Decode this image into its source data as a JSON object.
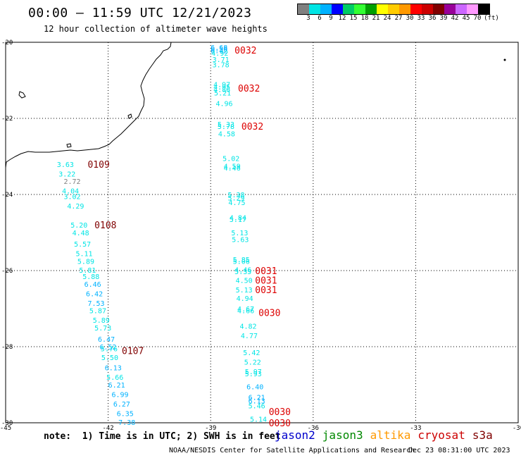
{
  "header": {
    "title": "00:00 — 11:59 UTC 12/21/2023",
    "subtitle": "12 hour collection of altimeter wave heights"
  },
  "colorbar": {
    "colors": [
      "#808080",
      "#00e5e5",
      "#00b2ff",
      "#0000ff",
      "#00cc66",
      "#33ff33",
      "#00a000",
      "#ffff00",
      "#ffcc00",
      "#ff9900",
      "#ff0000",
      "#cc0000",
      "#800000",
      "#990099",
      "#cc66ff",
      "#ff99ff",
      "#000000"
    ],
    "labels": [
      "3",
      "6",
      "9",
      "12",
      "15",
      "18",
      "21",
      "24",
      "27",
      "30",
      "33",
      "36",
      "39",
      "42",
      "45",
      "70",
      "(ft)"
    ]
  },
  "axes": {
    "y_ticks": [
      "-20",
      "-22",
      "-24",
      "-26",
      "-28",
      "-30"
    ],
    "x_ticks": [
      "-45",
      "-42",
      "-39",
      "-36",
      "-33",
      "-30"
    ],
    "x_range": [
      -45,
      -30
    ],
    "y_range": [
      -30,
      -20
    ]
  },
  "pass_times": [
    {
      "label": "0032",
      "lon": -38.3,
      "lat": -20.2,
      "color": "#dd0000"
    },
    {
      "label": "0032",
      "lon": -38.2,
      "lat": -21.2,
      "color": "#dd0000"
    },
    {
      "label": "0032",
      "lon": -38.1,
      "lat": -22.2,
      "color": "#dd0000"
    },
    {
      "label": "0109",
      "lon": -42.6,
      "lat": -23.2,
      "color": "#800000"
    },
    {
      "label": "0108",
      "lon": -42.4,
      "lat": -24.8,
      "color": "#800000"
    },
    {
      "label": "0031",
      "lon": -37.7,
      "lat": -26.0,
      "color": "#dd0000"
    },
    {
      "label": "0031",
      "lon": -37.7,
      "lat": -26.25,
      "color": "#dd0000"
    },
    {
      "label": "0031",
      "lon": -37.7,
      "lat": -26.5,
      "color": "#dd0000"
    },
    {
      "label": "0030",
      "lon": -37.6,
      "lat": -27.1,
      "color": "#dd0000"
    },
    {
      "label": "0107",
      "lon": -41.6,
      "lat": -28.1,
      "color": "#800000"
    },
    {
      "label": "0030",
      "lon": -37.3,
      "lat": -29.7,
      "color": "#dd0000"
    },
    {
      "label": "0030",
      "lon": -37.3,
      "lat": -30.0,
      "color": "#dd0000"
    }
  ],
  "observations": [
    {
      "v": "6.68",
      "lon": -39.0,
      "lat": -20.13
    },
    {
      "v": "6.58",
      "lon": -39.0,
      "lat": -20.17
    },
    {
      "v": "6.42",
      "lon": -39.0,
      "lat": -20.21
    },
    {
      "v": "4.92",
      "lon": -38.98,
      "lat": -20.28
    },
    {
      "v": "3.71",
      "lon": -38.95,
      "lat": -20.44
    },
    {
      "v": "3.78",
      "lon": -38.95,
      "lat": -20.58
    },
    {
      "v": "4.97",
      "lon": -38.92,
      "lat": -21.1
    },
    {
      "v": "4.95",
      "lon": -38.92,
      "lat": -21.17
    },
    {
      "v": "4.86",
      "lon": -38.92,
      "lat": -21.23
    },
    {
      "v": "5.21",
      "lon": -38.9,
      "lat": -21.32
    },
    {
      "v": "4.96",
      "lon": -38.85,
      "lat": -21.6
    },
    {
      "v": "5.33",
      "lon": -38.8,
      "lat": -22.15
    },
    {
      "v": "5.78",
      "lon": -38.8,
      "lat": -22.2
    },
    {
      "v": "4.58",
      "lon": -38.78,
      "lat": -22.4
    },
    {
      "v": "5.02",
      "lon": -38.65,
      "lat": -23.05
    },
    {
      "v": "4.59",
      "lon": -38.62,
      "lat": -23.25
    },
    {
      "v": "4.46",
      "lon": -38.62,
      "lat": -23.3
    },
    {
      "v": "5.38",
      "lon": -38.5,
      "lat": -24.0
    },
    {
      "v": "5.29",
      "lon": -38.5,
      "lat": -24.08
    },
    {
      "v": "4.75",
      "lon": -38.48,
      "lat": -24.2
    },
    {
      "v": "4.84",
      "lon": -38.45,
      "lat": -24.6
    },
    {
      "v": "5.17",
      "lon": -38.45,
      "lat": -24.65
    },
    {
      "v": "5.13",
      "lon": -38.4,
      "lat": -25.0
    },
    {
      "v": "5.63",
      "lon": -38.38,
      "lat": -25.18
    },
    {
      "v": "5.85",
      "lon": -38.35,
      "lat": -25.7
    },
    {
      "v": "5.06",
      "lon": -38.35,
      "lat": -25.75
    },
    {
      "v": "4.46",
      "lon": -38.3,
      "lat": -25.97
    },
    {
      "v": "5.35",
      "lon": -38.3,
      "lat": -26.02
    },
    {
      "v": "4.50",
      "lon": -38.27,
      "lat": -26.25
    },
    {
      "v": "5.13",
      "lon": -38.27,
      "lat": -26.5
    },
    {
      "v": "4.94",
      "lon": -38.25,
      "lat": -26.72
    },
    {
      "v": "4.67",
      "lon": -38.22,
      "lat": -27.0
    },
    {
      "v": "4.66",
      "lon": -38.22,
      "lat": -27.05
    },
    {
      "v": "4.82",
      "lon": -38.15,
      "lat": -27.45
    },
    {
      "v": "4.77",
      "lon": -38.12,
      "lat": -27.7
    },
    {
      "v": "5.42",
      "lon": -38.05,
      "lat": -28.15
    },
    {
      "v": "5.22",
      "lon": -38.02,
      "lat": -28.4
    },
    {
      "v": "5.97",
      "lon": -38.0,
      "lat": -28.65
    },
    {
      "v": "5.93",
      "lon": -38.0,
      "lat": -28.7
    },
    {
      "v": "6.40",
      "lon": -37.95,
      "lat": -29.05
    },
    {
      "v": "6.21",
      "lon": -37.9,
      "lat": -29.32
    },
    {
      "v": "6.13",
      "lon": -37.9,
      "lat": -29.42
    },
    {
      "v": "5.46",
      "lon": -37.9,
      "lat": -29.55
    },
    {
      "v": "5.14",
      "lon": -37.85,
      "lat": -29.9
    },
    {
      "v": "3.63",
      "lon": -43.5,
      "lat": -23.2
    },
    {
      "v": "3.22",
      "lon": -43.45,
      "lat": -23.45
    },
    {
      "v": "2.72",
      "lon": -43.3,
      "lat": -23.65
    },
    {
      "v": "4.04",
      "lon": -43.35,
      "lat": -23.9
    },
    {
      "v": "3.02",
      "lon": -43.3,
      "lat": -24.05
    },
    {
      "v": "4.29",
      "lon": -43.2,
      "lat": -24.3
    },
    {
      "v": "5.20",
      "lon": -43.1,
      "lat": -24.8
    },
    {
      "v": "4.48",
      "lon": -43.05,
      "lat": -25.0
    },
    {
      "v": "5.57",
      "lon": -43.0,
      "lat": -25.3
    },
    {
      "v": "5.11",
      "lon": -42.95,
      "lat": -25.55
    },
    {
      "v": "5.89",
      "lon": -42.9,
      "lat": -25.75
    },
    {
      "v": "5.81",
      "lon": -42.85,
      "lat": -25.98
    },
    {
      "v": "5.88",
      "lon": -42.75,
      "lat": -26.15
    },
    {
      "v": "6.46",
      "lon": -42.7,
      "lat": -26.35
    },
    {
      "v": "6.42",
      "lon": -42.65,
      "lat": -26.6
    },
    {
      "v": "7.53",
      "lon": -42.6,
      "lat": -26.85
    },
    {
      "v": "5.87",
      "lon": -42.55,
      "lat": -27.05
    },
    {
      "v": "5.89",
      "lon": -42.45,
      "lat": -27.3
    },
    {
      "v": "5.73",
      "lon": -42.4,
      "lat": -27.5
    },
    {
      "v": "6.47",
      "lon": -42.3,
      "lat": -27.8
    },
    {
      "v": "6.52",
      "lon": -42.25,
      "lat": -28.0
    },
    {
      "v": "5.76",
      "lon": -42.22,
      "lat": -28.05
    },
    {
      "v": "5.50",
      "lon": -42.2,
      "lat": -28.28
    },
    {
      "v": "6.13",
      "lon": -42.1,
      "lat": -28.55
    },
    {
      "v": "5.66",
      "lon": -42.05,
      "lat": -28.8
    },
    {
      "v": "6.21",
      "lon": -42.0,
      "lat": -29.0
    },
    {
      "v": "6.99",
      "lon": -41.9,
      "lat": -29.25
    },
    {
      "v": "6.27",
      "lon": -41.85,
      "lat": -29.5
    },
    {
      "v": "6.35",
      "lon": -41.75,
      "lat": -29.75
    },
    {
      "v": "7.38",
      "lon": -41.7,
      "lat": -29.98
    }
  ],
  "footer": {
    "note": "note:  1) Time is in UTC; 2) SWH is in feet",
    "missions": [
      {
        "name": "jason2",
        "color": "#0000cc"
      },
      {
        "name": "jason3",
        "color": "#008800"
      },
      {
        "name": "altika",
        "color": "#ff9900"
      },
      {
        "name": "cryosat",
        "color": "#cc0000"
      },
      {
        "name": "s3a",
        "color": "#800000"
      }
    ],
    "credit": "NOAA/NESDIS Center for Satellite Applications and Research",
    "timestamp": "Dec 23 08:31:00 UTC 2023"
  }
}
